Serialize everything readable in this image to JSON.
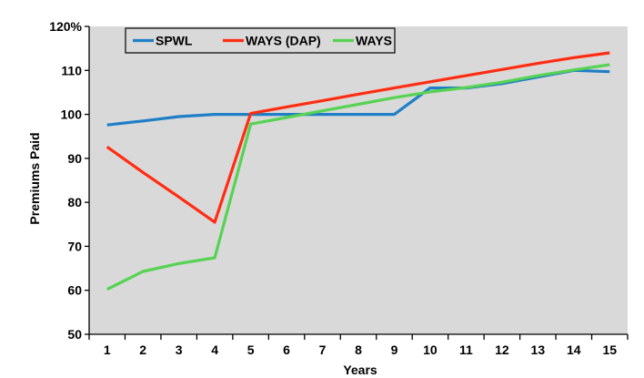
{
  "chart_data": {
    "type": "line",
    "title": "",
    "xlabel": "Years",
    "ylabel": "Premiums Paid",
    "x": [
      1,
      2,
      3,
      4,
      5,
      6,
      7,
      8,
      9,
      10,
      11,
      12,
      13,
      14,
      15
    ],
    "ylim": [
      50,
      120
    ],
    "yticks": [
      50,
      60,
      70,
      80,
      90,
      100,
      110,
      120
    ],
    "ytick_labels": [
      "50",
      "60",
      "70",
      "80",
      "90",
      "100",
      "110",
      "120%"
    ],
    "grid": false,
    "legend_position": "top-left",
    "plot_background": "#d9d9d9",
    "series": [
      {
        "name": "SPWL",
        "color": "#1f7fc6",
        "values": [
          97.6,
          98.5,
          99.5,
          100,
          100,
          100,
          100,
          100,
          100,
          106,
          106,
          107,
          108.5,
          110,
          109.7
        ]
      },
      {
        "name": "WAYS (DAP)",
        "color": "#ff2d12",
        "values": [
          92.6,
          86.8,
          81.2,
          75.5,
          100.2,
          101.7,
          103.1,
          104.6,
          106,
          107.4,
          108.8,
          110.2,
          111.6,
          112.9,
          114
        ]
      },
      {
        "name": "WAYS",
        "color": "#56d352",
        "values": [
          60.2,
          64.3,
          66.1,
          67.4,
          97.8,
          99.3,
          100.8,
          102.3,
          103.8,
          105.1,
          106.1,
          107.3,
          108.8,
          110.1,
          111.3
        ]
      }
    ]
  }
}
